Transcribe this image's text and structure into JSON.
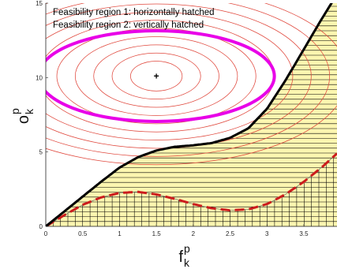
{
  "chart_data": {
    "type": "line",
    "title": "",
    "xlabel": {
      "base": "f",
      "sup": "p",
      "sub": "k"
    },
    "ylabel": {
      "base": "o",
      "sup": "p",
      "sub": "k"
    },
    "xlim": [
      0,
      3.95
    ],
    "ylim": [
      0,
      15
    ],
    "xticks": [
      0,
      0.5,
      1,
      1.5,
      2,
      2.5,
      3,
      3.5
    ],
    "xtick_labels": [
      "0",
      "0.5",
      "1",
      "1.5",
      "2",
      "2.5",
      "3",
      "3.5"
    ],
    "yticks": [
      0,
      5,
      10,
      15
    ],
    "ytick_labels": [
      "0",
      "5",
      "10",
      "15"
    ],
    "grid": false,
    "annotations": [
      {
        "text": "Feasibility region 1: horizontally hatched"
      },
      {
        "text": "Feasibility region 2: vertically hatched"
      }
    ],
    "optimum_marker": {
      "x": 1.5,
      "y": 10.1,
      "symbol": "+"
    },
    "contours": {
      "center": [
        1.5,
        10.1
      ],
      "radius_x": [
        0.35,
        0.6,
        0.85,
        1.1,
        1.35,
        1.6,
        1.85,
        2.1,
        2.35,
        2.6
      ],
      "radius_y": [
        1.0,
        1.55,
        2.1,
        2.65,
        3.2,
        3.75,
        4.3,
        4.85,
        5.4,
        5.95
      ],
      "color": "#e0473c"
    },
    "highlight_contour": {
      "radius_x": 1.6,
      "radius_y": 3.05,
      "color": "#e800e8"
    },
    "series": [
      {
        "style": "solid",
        "color": "#000000",
        "x": [
          0,
          0.25,
          0.5,
          0.75,
          1.0,
          1.25,
          1.5,
          1.75,
          2.0,
          2.25,
          2.5,
          2.75,
          3.0,
          3.25,
          3.5,
          3.75,
          3.95
        ],
        "y": [
          0,
          1.0,
          2.0,
          3.0,
          3.95,
          4.65,
          5.1,
          5.35,
          5.45,
          5.6,
          5.95,
          6.6,
          7.9,
          9.8,
          11.9,
          14.0,
          15.6
        ]
      },
      {
        "style": "dashed",
        "color": "#cc1c1c",
        "x": [
          0,
          0.25,
          0.5,
          0.75,
          1.0,
          1.25,
          1.5,
          1.75,
          2.0,
          2.25,
          2.5,
          2.75,
          3.0,
          3.25,
          3.5,
          3.75,
          3.95
        ],
        "y": [
          0,
          0.75,
          1.45,
          1.95,
          2.25,
          2.32,
          2.15,
          1.85,
          1.5,
          1.22,
          1.08,
          1.15,
          1.5,
          2.15,
          3.0,
          4.0,
          4.9
        ]
      }
    ],
    "region_fill_color": "#fcf6b0"
  }
}
